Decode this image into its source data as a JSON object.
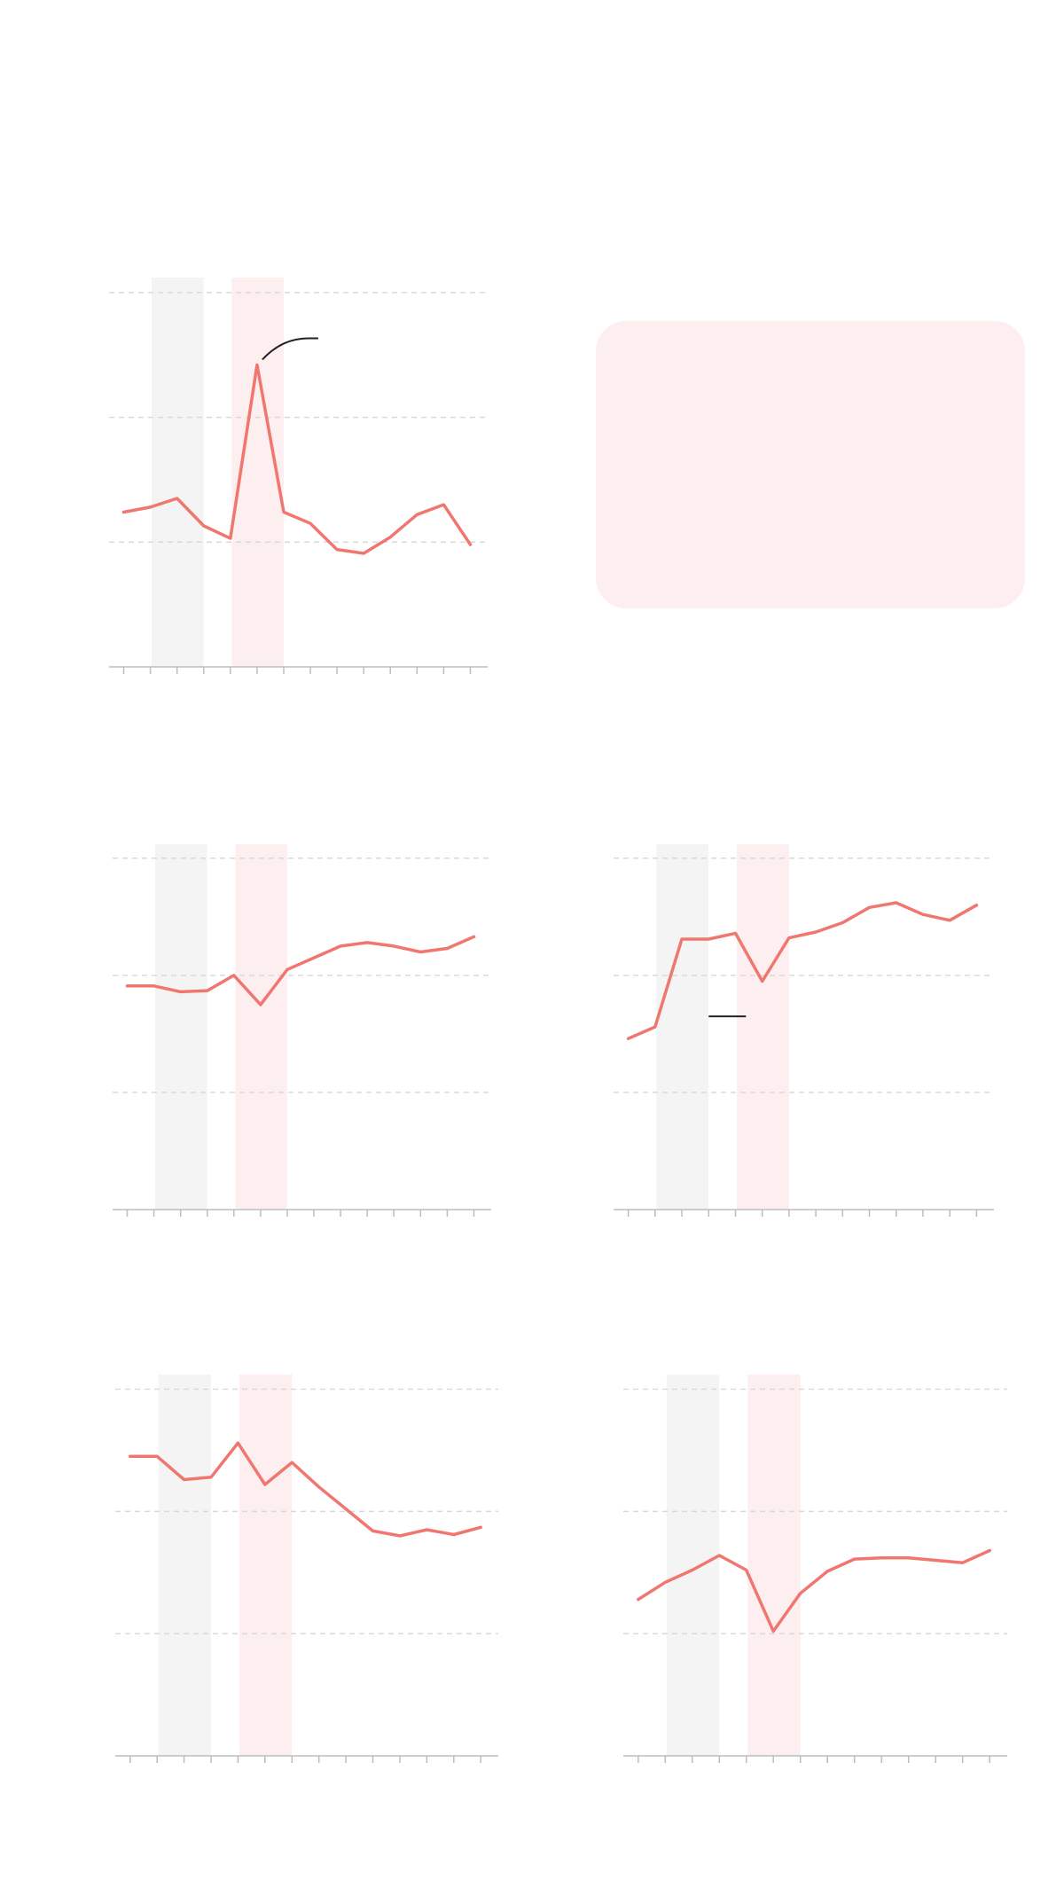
{
  "colors": {
    "line": "#f0776f",
    "band_grey": "#f4f4f4",
    "band_pink": "#fdeff0",
    "grid": "#d9d9d9",
    "axis": "#bdbdbd",
    "annotation": "#222222",
    "callout_fill": "#fdeff0"
  },
  "chart_data": [
    {
      "type": "line",
      "x": [
        0,
        1,
        2,
        3,
        4,
        5,
        6,
        7,
        8,
        9,
        10,
        11,
        12,
        13
      ],
      "values": [
        1.24,
        1.28,
        1.35,
        1.13,
        1.03,
        2.42,
        1.24,
        1.15,
        0.94,
        0.91,
        1.04,
        1.22,
        1.3,
        0.98
      ],
      "xlim": [
        -0.55,
        13.65
      ],
      "ylim": [
        0,
        3.12
      ],
      "gridlines": [
        1,
        2,
        3
      ],
      "shaded_ranges": [
        {
          "from": 1.05,
          "to": 3.0,
          "style": "grey"
        },
        {
          "from": 4.05,
          "to": 6.0,
          "style": "pink"
        }
      ],
      "annotation": {
        "type": "curved-leader",
        "at_index": 5
      },
      "grid": true,
      "xlabel": "",
      "ylabel": ""
    },
    {
      "type": "line",
      "x": [
        0,
        1,
        2,
        3,
        4,
        5,
        6,
        7,
        8,
        9,
        10,
        11,
        12,
        13
      ],
      "values": [
        1.91,
        1.91,
        1.86,
        1.87,
        2.0,
        1.75,
        2.05,
        2.15,
        2.25,
        2.28,
        2.25,
        2.2,
        2.23,
        2.33
      ],
      "xlim": [
        -0.55,
        13.65
      ],
      "ylim": [
        0,
        3.12
      ],
      "gridlines": [
        1,
        2,
        3
      ],
      "shaded_ranges": [
        {
          "from": 1.05,
          "to": 3.0,
          "style": "grey"
        },
        {
          "from": 4.05,
          "to": 6.0,
          "style": "pink"
        }
      ],
      "grid": true,
      "xlabel": "",
      "ylabel": ""
    },
    {
      "type": "line",
      "x": [
        0,
        1,
        2,
        3,
        4,
        5,
        6,
        7,
        8,
        9,
        10,
        11,
        12,
        13
      ],
      "values": [
        1.46,
        1.56,
        2.31,
        2.31,
        2.36,
        1.95,
        2.32,
        2.37,
        2.45,
        2.58,
        2.62,
        2.52,
        2.47,
        2.6
      ],
      "xlim": [
        -0.55,
        13.65
      ],
      "ylim": [
        0,
        3.12
      ],
      "gridlines": [
        1,
        2,
        3
      ],
      "shaded_ranges": [
        {
          "from": 1.05,
          "to": 3.0,
          "style": "grey"
        },
        {
          "from": 4.05,
          "to": 6.0,
          "style": "pink"
        }
      ],
      "annotation": {
        "type": "tick-mark",
        "at": [
          3.0,
          1.65
        ]
      },
      "grid": true,
      "xlabel": "",
      "ylabel": ""
    },
    {
      "type": "line",
      "x": [
        0,
        1,
        2,
        3,
        4,
        5,
        6,
        7,
        8,
        9,
        10,
        11,
        12,
        13
      ],
      "values": [
        2.45,
        2.45,
        2.26,
        2.28,
        2.56,
        2.22,
        2.4,
        2.2,
        2.02,
        1.84,
        1.8,
        1.85,
        1.81,
        1.87
      ],
      "xlim": [
        -0.55,
        13.65
      ],
      "ylim": [
        0,
        3.12
      ],
      "gridlines": [
        1,
        2,
        3
      ],
      "shaded_ranges": [
        {
          "from": 1.05,
          "to": 3.0,
          "style": "grey"
        },
        {
          "from": 4.05,
          "to": 6.0,
          "style": "pink"
        }
      ],
      "grid": true,
      "xlabel": "",
      "ylabel": ""
    },
    {
      "type": "line",
      "x": [
        0,
        1,
        2,
        3,
        4,
        5,
        6,
        7,
        8,
        9,
        10,
        11,
        12,
        13
      ],
      "values": [
        1.28,
        1.42,
        1.52,
        1.64,
        1.52,
        1.02,
        1.33,
        1.51,
        1.61,
        1.62,
        1.62,
        1.6,
        1.58,
        1.68
      ],
      "xlim": [
        -0.55,
        13.65
      ],
      "ylim": [
        0,
        3.12
      ],
      "gridlines": [
        1,
        2,
        3
      ],
      "shaded_ranges": [
        {
          "from": 1.05,
          "to": 3.0,
          "style": "grey"
        },
        {
          "from": 4.05,
          "to": 6.0,
          "style": "pink"
        }
      ],
      "grid": true,
      "xlabel": "",
      "ylabel": ""
    }
  ]
}
